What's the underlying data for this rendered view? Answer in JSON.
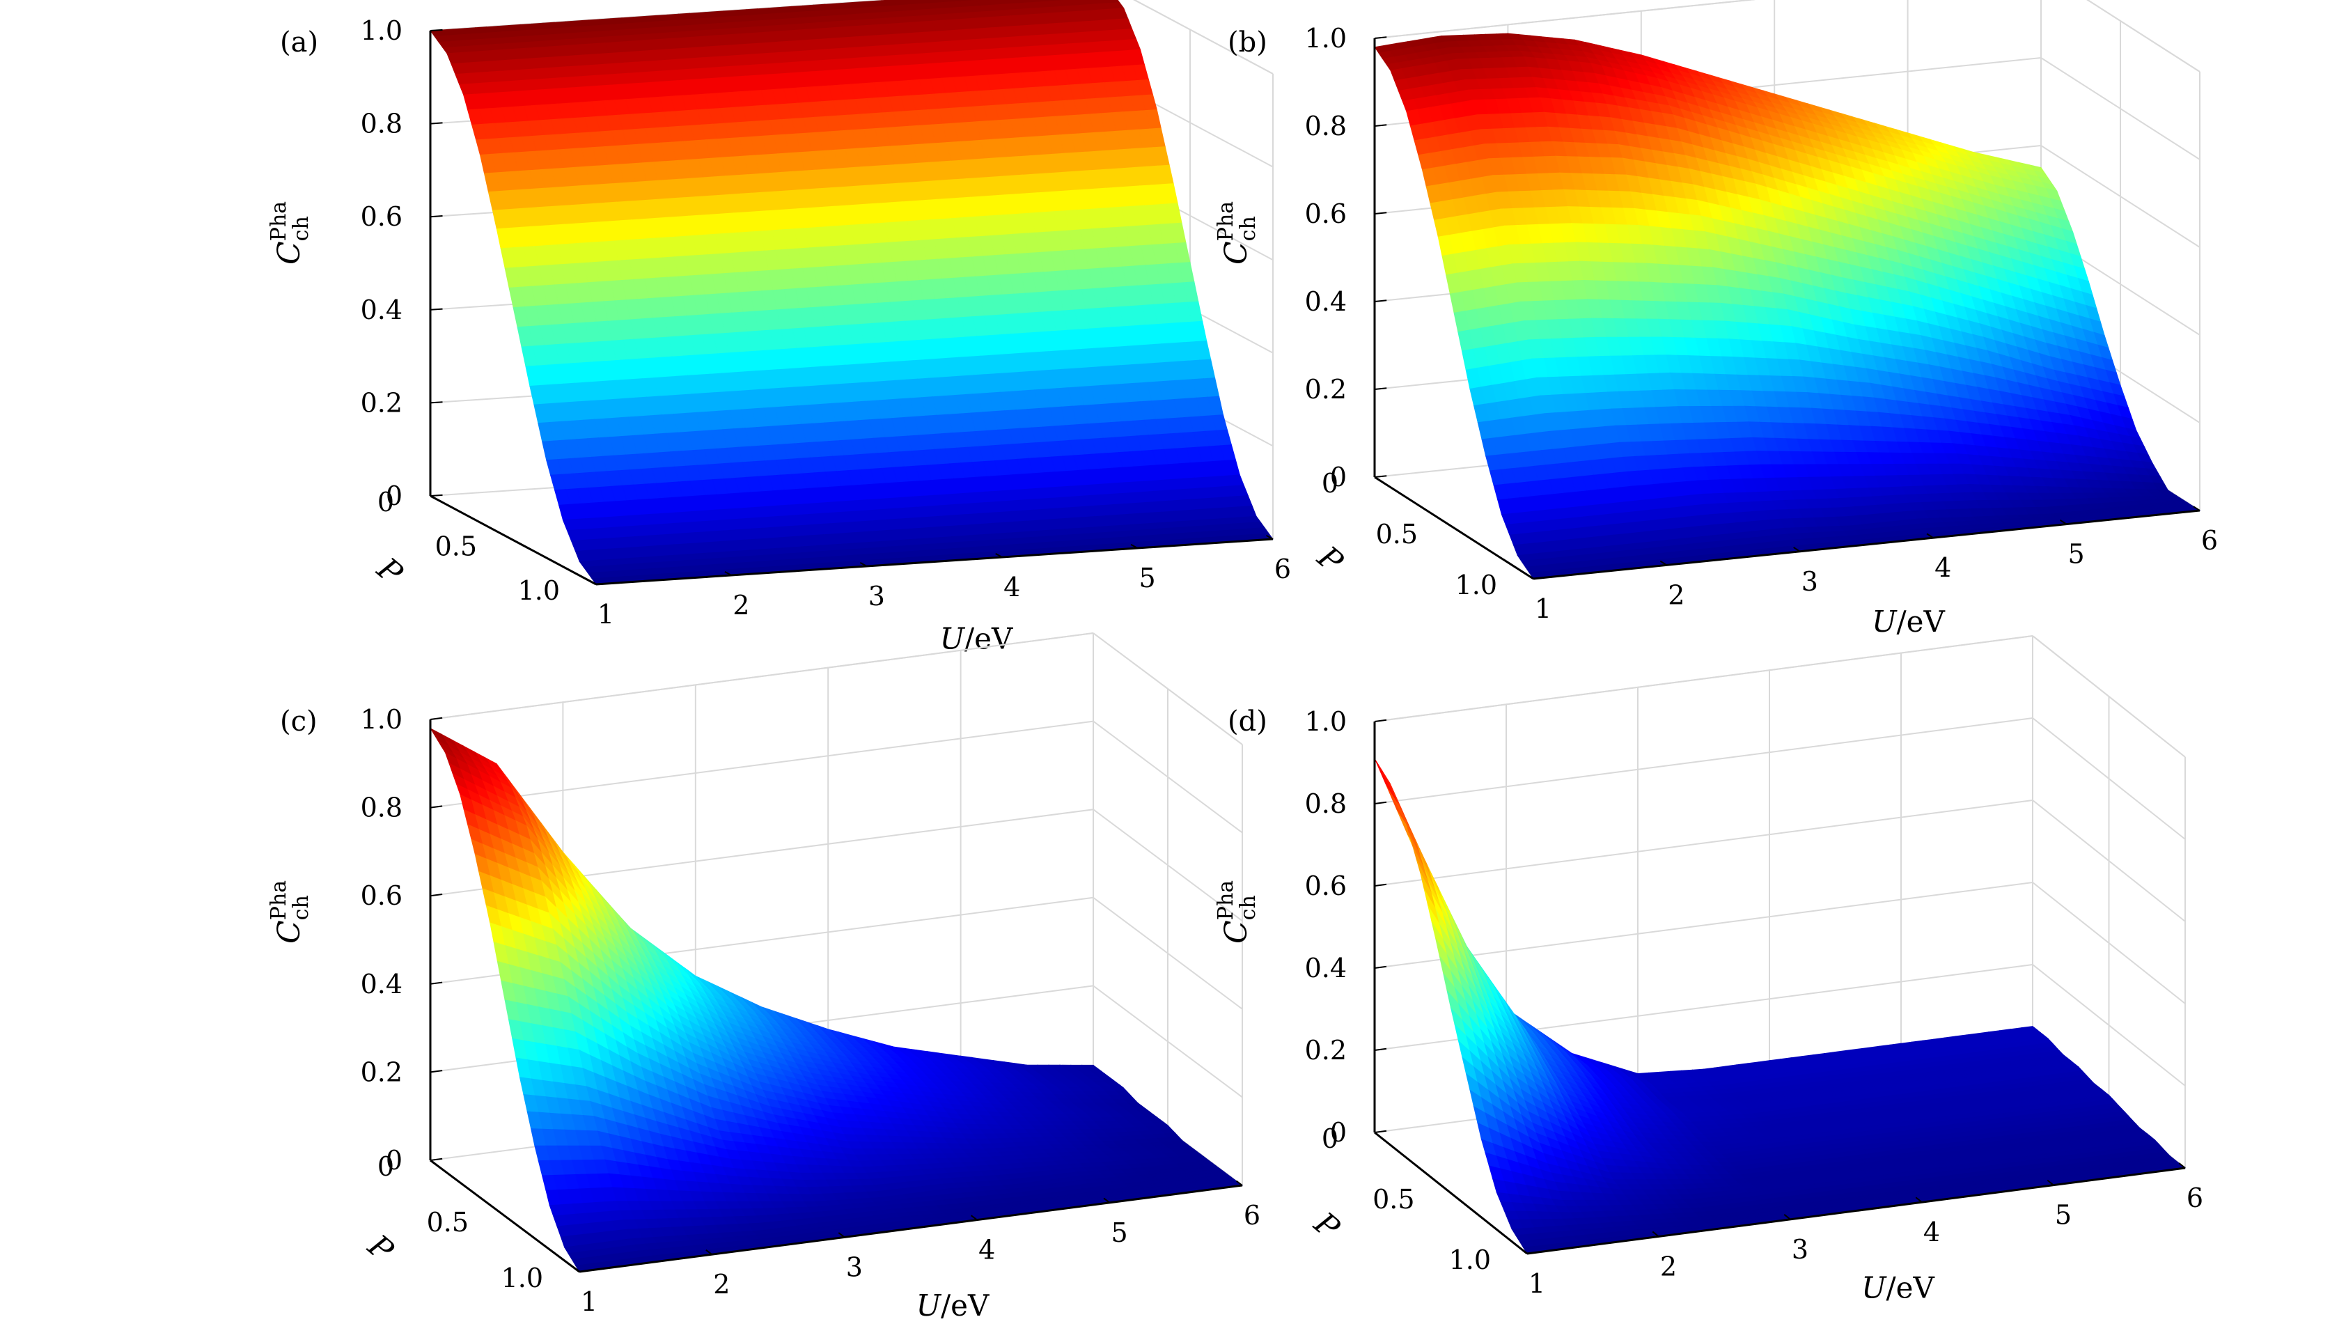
{
  "colormap": [
    "#00008f",
    "#0000ff",
    "#0080ff",
    "#00ffff",
    "#80ff80",
    "#ffff00",
    "#ff8000",
    "#ff0000",
    "#800000"
  ],
  "axes_style": {
    "box_color": "#000000",
    "grid_color": "#d9d9d9"
  },
  "chart_data": [
    {
      "type": "surface",
      "panel_label": "(a)",
      "zlabel": "C",
      "zlabel_sub": "ch",
      "zlabel_sup": "Pha",
      "xlabel_var": "U",
      "xlabel_unit": "/eV",
      "ylabel": "P",
      "x_ticks": [
        "1",
        "2",
        "3",
        "4",
        "5",
        "6"
      ],
      "y_ticks": [
        "0",
        "0.5",
        "1.0"
      ],
      "z_ticks": [
        "0",
        "0.2",
        "0.4",
        "0.6",
        "0.8",
        "1.0"
      ],
      "xlim": [
        1,
        6
      ],
      "ylim": [
        0,
        1
      ],
      "zlim": [
        0,
        1
      ],
      "surface": {
        "U": [
          1,
          1.5,
          2,
          2.5,
          3,
          3.5,
          4,
          4.5,
          5,
          5.5,
          6
        ],
        "P": [
          0,
          0.1,
          0.2,
          0.3,
          0.4,
          0.5,
          0.6,
          0.7,
          0.8,
          0.9,
          1.0
        ],
        "z": [
          [
            1.0,
            1.0,
            1.0,
            1.0,
            1.0,
            1.0,
            1.0,
            1.0,
            1.0,
            1.0,
            1.0
          ],
          [
            0.97,
            0.97,
            0.97,
            0.97,
            0.97,
            0.97,
            0.97,
            0.97,
            0.97,
            0.97,
            0.97
          ],
          [
            0.9,
            0.9,
            0.9,
            0.9,
            0.9,
            0.9,
            0.9,
            0.9,
            0.9,
            0.9,
            0.9
          ],
          [
            0.79,
            0.79,
            0.79,
            0.79,
            0.79,
            0.79,
            0.79,
            0.79,
            0.79,
            0.79,
            0.79
          ],
          [
            0.65,
            0.65,
            0.65,
            0.65,
            0.65,
            0.65,
            0.65,
            0.65,
            0.65,
            0.65,
            0.65
          ],
          [
            0.5,
            0.5,
            0.5,
            0.5,
            0.5,
            0.5,
            0.5,
            0.5,
            0.5,
            0.5,
            0.5
          ],
          [
            0.35,
            0.35,
            0.35,
            0.35,
            0.35,
            0.35,
            0.35,
            0.35,
            0.35,
            0.35,
            0.35
          ],
          [
            0.21,
            0.21,
            0.21,
            0.21,
            0.21,
            0.21,
            0.21,
            0.21,
            0.21,
            0.21,
            0.21
          ],
          [
            0.1,
            0.1,
            0.1,
            0.1,
            0.1,
            0.1,
            0.1,
            0.1,
            0.1,
            0.1,
            0.1
          ],
          [
            0.03,
            0.03,
            0.03,
            0.03,
            0.03,
            0.03,
            0.03,
            0.03,
            0.03,
            0.03,
            0.03
          ],
          [
            0.0,
            0.0,
            0.0,
            0.0,
            0.0,
            0.0,
            0.0,
            0.0,
            0.0,
            0.0,
            0.0
          ]
        ]
      }
    },
    {
      "type": "surface",
      "panel_label": "(b)",
      "zlabel": "C",
      "zlabel_sub": "ch",
      "zlabel_sup": "Pha",
      "xlabel_var": "U",
      "xlabel_unit": "/eV",
      "ylabel": "P",
      "x_ticks": [
        "1",
        "2",
        "3",
        "4",
        "5",
        "6"
      ],
      "y_ticks": [
        "0",
        "0.5",
        "1.0"
      ],
      "z_ticks": [
        "0",
        "0.2",
        "0.4",
        "0.6",
        "0.8",
        "1.0"
      ],
      "xlim": [
        1,
        6
      ],
      "ylim": [
        0,
        1
      ],
      "zlim": [
        0,
        1
      ],
      "surface": {
        "U": [
          1,
          1.5,
          2,
          2.5,
          3,
          3.5,
          4,
          4.5,
          5,
          5.5,
          6
        ],
        "P": [
          0,
          0.1,
          0.2,
          0.3,
          0.4,
          0.5,
          0.6,
          0.7,
          0.8,
          0.9,
          1.0
        ],
        "z": [
          [
            0.98,
            0.99,
            0.98,
            0.95,
            0.9,
            0.84,
            0.78,
            0.72,
            0.66,
            0.6,
            0.55
          ],
          [
            0.95,
            0.96,
            0.95,
            0.92,
            0.87,
            0.81,
            0.75,
            0.69,
            0.63,
            0.57,
            0.52
          ],
          [
            0.88,
            0.89,
            0.88,
            0.85,
            0.81,
            0.75,
            0.69,
            0.63,
            0.57,
            0.51,
            0.45
          ],
          [
            0.77,
            0.78,
            0.77,
            0.75,
            0.71,
            0.66,
            0.6,
            0.54,
            0.48,
            0.42,
            0.36
          ],
          [
            0.64,
            0.65,
            0.64,
            0.62,
            0.59,
            0.54,
            0.49,
            0.44,
            0.38,
            0.32,
            0.26
          ],
          [
            0.49,
            0.5,
            0.49,
            0.47,
            0.45,
            0.42,
            0.37,
            0.33,
            0.28,
            0.22,
            0.17
          ],
          [
            0.34,
            0.35,
            0.34,
            0.33,
            0.31,
            0.29,
            0.26,
            0.22,
            0.18,
            0.14,
            0.09
          ],
          [
            0.21,
            0.21,
            0.21,
            0.2,
            0.19,
            0.17,
            0.15,
            0.13,
            0.1,
            0.07,
            0.04
          ],
          [
            0.1,
            0.1,
            0.1,
            0.1,
            0.09,
            0.08,
            0.07,
            0.06,
            0.04,
            0.02,
            0.0
          ],
          [
            0.03,
            0.03,
            0.03,
            0.03,
            0.03,
            0.02,
            0.02,
            0.01,
            0.0,
            0.0,
            0.0
          ],
          [
            0.0,
            0.0,
            0.0,
            0.0,
            0.0,
            0.0,
            0.0,
            0.0,
            0.0,
            0.0,
            0.0
          ]
        ]
      }
    },
    {
      "type": "surface",
      "panel_label": "(c)",
      "zlabel": "C",
      "zlabel_sub": "ch",
      "zlabel_sup": "Pha",
      "xlabel_var": "U",
      "xlabel_unit": "/eV",
      "ylabel": "P",
      "x_ticks": [
        "1",
        "2",
        "3",
        "4",
        "5",
        "6"
      ],
      "y_ticks": [
        "0",
        "0.5",
        "1.0"
      ],
      "z_ticks": [
        "0",
        "0.2",
        "0.4",
        "0.6",
        "0.8",
        "1.0"
      ],
      "xlim": [
        1,
        6
      ],
      "ylim": [
        0,
        1
      ],
      "zlim": [
        0,
        1
      ],
      "surface": {
        "U": [
          1,
          1.5,
          2,
          2.5,
          3,
          3.5,
          4,
          4.5,
          5,
          5.5,
          6
        ],
        "P": [
          0,
          0.1,
          0.2,
          0.3,
          0.4,
          0.5,
          0.6,
          0.7,
          0.8,
          0.9,
          1.0
        ],
        "z": [
          [
            0.98,
            0.88,
            0.66,
            0.47,
            0.34,
            0.25,
            0.18,
            0.12,
            0.08,
            0.04,
            0.02
          ],
          [
            0.95,
            0.85,
            0.64,
            0.46,
            0.33,
            0.24,
            0.17,
            0.12,
            0.08,
            0.04,
            0.02
          ],
          [
            0.88,
            0.79,
            0.59,
            0.42,
            0.3,
            0.22,
            0.16,
            0.11,
            0.07,
            0.04,
            0.02
          ],
          [
            0.77,
            0.69,
            0.52,
            0.37,
            0.26,
            0.19,
            0.14,
            0.1,
            0.06,
            0.03,
            0.01
          ],
          [
            0.64,
            0.57,
            0.43,
            0.31,
            0.22,
            0.16,
            0.12,
            0.08,
            0.05,
            0.03,
            0.01
          ],
          [
            0.49,
            0.44,
            0.33,
            0.24,
            0.17,
            0.12,
            0.09,
            0.06,
            0.04,
            0.02,
            0.01
          ],
          [
            0.34,
            0.3,
            0.23,
            0.16,
            0.12,
            0.08,
            0.06,
            0.04,
            0.03,
            0.01,
            0.0
          ],
          [
            0.21,
            0.19,
            0.14,
            0.1,
            0.07,
            0.05,
            0.04,
            0.03,
            0.02,
            0.01,
            0.0
          ],
          [
            0.1,
            0.09,
            0.07,
            0.05,
            0.03,
            0.02,
            0.02,
            0.01,
            0.01,
            0.0,
            0.0
          ],
          [
            0.03,
            0.03,
            0.02,
            0.01,
            0.01,
            0.01,
            0.0,
            0.0,
            0.0,
            0.0,
            0.0
          ],
          [
            0.0,
            0.0,
            0.0,
            0.0,
            0.0,
            0.0,
            0.0,
            0.0,
            0.0,
            0.0,
            0.0
          ]
        ]
      }
    },
    {
      "type": "surface",
      "panel_label": "(d)",
      "zlabel": "C",
      "zlabel_sub": "ch",
      "zlabel_sup": "Pha",
      "xlabel_var": "U",
      "xlabel_unit": "/eV",
      "ylabel": "P",
      "x_ticks": [
        "1",
        "2",
        "3",
        "4",
        "5",
        "6"
      ],
      "y_ticks": [
        "0",
        "0.5",
        "1.0"
      ],
      "z_ticks": [
        "0",
        "0.2",
        "0.4",
        "0.6",
        "0.8",
        "1.0"
      ],
      "xlim": [
        1,
        6
      ],
      "ylim": [
        0,
        1
      ],
      "zlim": [
        0,
        1
      ],
      "surface": {
        "U": [
          1,
          1.5,
          2,
          2.5,
          3,
          3.5,
          4,
          4.5,
          5,
          5.5,
          6
        ],
        "P": [
          0,
          0.1,
          0.2,
          0.3,
          0.4,
          0.5,
          0.6,
          0.7,
          0.8,
          0.9,
          1.0
        ],
        "z": [
          [
            0.91,
            0.52,
            0.26,
            0.13,
            0.06,
            0.05,
            0.05,
            0.05,
            0.05,
            0.05,
            0.05
          ],
          [
            0.88,
            0.5,
            0.25,
            0.13,
            0.06,
            0.05,
            0.05,
            0.05,
            0.05,
            0.05,
            0.05
          ],
          [
            0.82,
            0.47,
            0.23,
            0.12,
            0.05,
            0.04,
            0.04,
            0.04,
            0.04,
            0.04,
            0.04
          ],
          [
            0.72,
            0.41,
            0.2,
            0.1,
            0.05,
            0.04,
            0.04,
            0.04,
            0.04,
            0.04,
            0.04
          ],
          [
            0.59,
            0.34,
            0.17,
            0.08,
            0.04,
            0.03,
            0.03,
            0.03,
            0.03,
            0.03,
            0.03
          ],
          [
            0.45,
            0.26,
            0.13,
            0.06,
            0.03,
            0.03,
            0.03,
            0.03,
            0.03,
            0.03,
            0.03
          ],
          [
            0.32,
            0.18,
            0.09,
            0.05,
            0.02,
            0.02,
            0.02,
            0.02,
            0.02,
            0.02,
            0.02
          ],
          [
            0.19,
            0.11,
            0.05,
            0.03,
            0.01,
            0.01,
            0.01,
            0.01,
            0.01,
            0.01,
            0.01
          ],
          [
            0.09,
            0.05,
            0.03,
            0.01,
            0.01,
            0.01,
            0.01,
            0.01,
            0.01,
            0.01,
            0.01
          ],
          [
            0.03,
            0.02,
            0.01,
            0.0,
            0.0,
            0.0,
            0.0,
            0.0,
            0.0,
            0.0,
            0.0
          ],
          [
            0.0,
            0.0,
            0.0,
            0.0,
            0.0,
            0.0,
            0.0,
            0.0,
            0.0,
            0.0,
            0.0
          ]
        ]
      }
    }
  ]
}
